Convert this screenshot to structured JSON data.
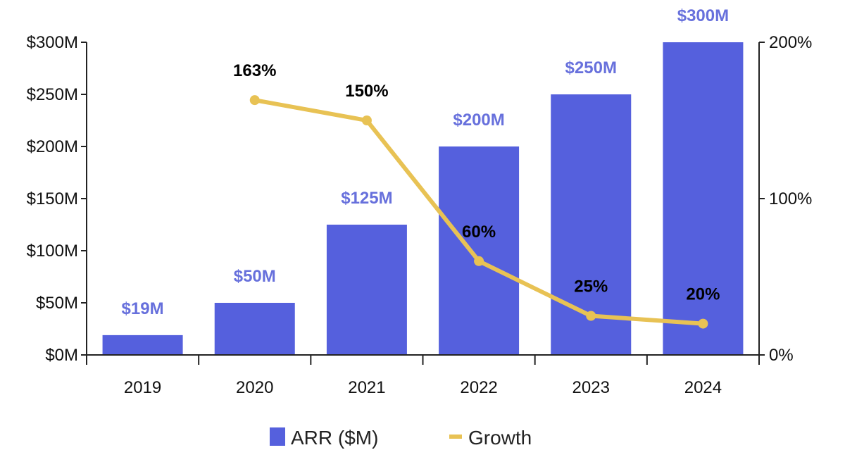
{
  "chart_data": {
    "type": "bar+line",
    "categories": [
      "2019",
      "2020",
      "2021",
      "2022",
      "2023",
      "2024"
    ],
    "series": [
      {
        "name": "ARR ($M)",
        "type": "bar",
        "axis": "left",
        "values": [
          19,
          50,
          125,
          200,
          250,
          300
        ],
        "labels": [
          "$19M",
          "$50M",
          "$125M",
          "$200M",
          "$250M",
          "$300M"
        ],
        "color": "#5560DD"
      },
      {
        "name": "Growth",
        "type": "line",
        "axis": "right",
        "values": [
          null,
          163,
          150,
          60,
          25,
          20
        ],
        "labels": [
          "",
          "163%",
          "150%",
          "60%",
          "25%",
          "20%"
        ],
        "color": "#E8C254"
      }
    ],
    "y_left": {
      "range": [
        0,
        300
      ],
      "ticks": [
        0,
        50,
        100,
        150,
        200,
        250,
        300
      ],
      "tick_labels": [
        "$0M",
        "$50M",
        "$100M",
        "$150M",
        "$200M",
        "$250M",
        "$300M"
      ]
    },
    "y_right": {
      "range": [
        0,
        200
      ],
      "ticks": [
        0,
        100,
        200
      ],
      "tick_labels": [
        "0%",
        "100%",
        "200%"
      ]
    },
    "grid": false,
    "legend": {
      "placement": "bottom",
      "entries": [
        "ARR ($M)",
        "Growth"
      ]
    }
  }
}
